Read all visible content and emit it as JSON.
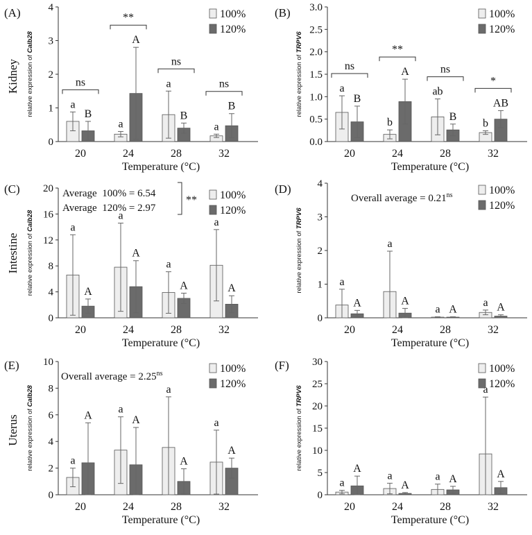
{
  "row_labels": [
    "Kidney",
    "Intestine",
    "Uterus"
  ],
  "legend": {
    "series": [
      "100%",
      "120%"
    ],
    "colors": [
      "#eeeeee",
      "#6b6b6b"
    ]
  },
  "chart_data": [
    {
      "panel": "(A)",
      "type": "bar",
      "gene": "Calb28",
      "ylabel_prefix": "relative expression of ",
      "xlabel": "Temperature (°C)",
      "categories": [
        "20",
        "24",
        "28",
        "32"
      ],
      "ylim": [
        0,
        4
      ],
      "yticks": [
        "0",
        "1",
        "2",
        "3",
        "4"
      ],
      "series": [
        {
          "name": "100%",
          "values": [
            0.6,
            0.22,
            0.8,
            0.17
          ],
          "errors": [
            0.28,
            0.08,
            0.7,
            0.05
          ],
          "letters": [
            "a",
            "a",
            "a",
            "a"
          ]
        },
        {
          "name": "120%",
          "values": [
            0.32,
            1.43,
            0.4,
            0.47
          ],
          "errors": [
            0.28,
            1.37,
            0.15,
            0.36
          ],
          "letters": [
            "B",
            "A",
            "B",
            "B"
          ]
        }
      ],
      "comparisons": [
        "ns",
        "**",
        "ns",
        "ns"
      ]
    },
    {
      "panel": "(B)",
      "type": "bar",
      "gene": "TRPV6",
      "ylabel_prefix": "relative expression of ",
      "xlabel": "Temperature (°C)",
      "categories": [
        "20",
        "24",
        "28",
        "32"
      ],
      "ylim": [
        0,
        3
      ],
      "yticks": [
        "0.0",
        "0.5",
        "1.0",
        "1.5",
        "2.0",
        "2.5",
        "3.0"
      ],
      "series": [
        {
          "name": "100%",
          "values": [
            0.65,
            0.16,
            0.55,
            0.2
          ],
          "errors": [
            0.37,
            0.1,
            0.4,
            0.04
          ],
          "letters": [
            "a",
            "b",
            "ab",
            "b"
          ]
        },
        {
          "name": "120%",
          "values": [
            0.44,
            0.89,
            0.26,
            0.5
          ],
          "errors": [
            0.35,
            0.5,
            0.13,
            0.19
          ],
          "letters": [
            "B",
            "A",
            "B",
            "AB"
          ]
        }
      ],
      "comparisons": [
        "ns",
        "**",
        "ns",
        "*"
      ]
    },
    {
      "panel": "(C)",
      "type": "bar",
      "gene": "Calb28",
      "ylabel_prefix": "relative expression of ",
      "xlabel": "Temperature (°C)",
      "categories": [
        "20",
        "24",
        "28",
        "32"
      ],
      "ylim": [
        0,
        20
      ],
      "yticks": [
        "0",
        "4",
        "8",
        "12",
        "16",
        "20"
      ],
      "series": [
        {
          "name": "100%",
          "values": [
            6.6,
            7.8,
            3.9,
            8.1
          ],
          "errors": [
            6.2,
            6.8,
            3.2,
            5.5
          ],
          "letters": [
            "a",
            "a",
            "a",
            "a"
          ]
        },
        {
          "name": "120%",
          "values": [
            1.8,
            4.8,
            3.0,
            2.1
          ],
          "errors": [
            1.1,
            4.0,
            0.8,
            1.3
          ],
          "letters": [
            "A",
            "A",
            "A",
            "A"
          ]
        }
      ],
      "annotation_lines": [
        "Average  100% = 6.54",
        "Average  120% = 2.97"
      ],
      "annotation_sig": "**"
    },
    {
      "panel": "(D)",
      "type": "bar",
      "gene": "TRPV6",
      "ylabel_prefix": "relative expression of ",
      "xlabel": "Temperature (°C)",
      "categories": [
        "20",
        "24",
        "28",
        "32"
      ],
      "ylim": [
        0,
        4
      ],
      "yticks": [
        "0",
        "1",
        "2",
        "3",
        "4"
      ],
      "series": [
        {
          "name": "100%",
          "values": [
            0.38,
            0.78,
            0.02,
            0.16
          ],
          "errors": [
            0.47,
            1.2,
            0.01,
            0.07
          ],
          "letters": [
            "a",
            "a",
            "a",
            "a"
          ]
        },
        {
          "name": "120%",
          "values": [
            0.12,
            0.14,
            0.02,
            0.05
          ],
          "errors": [
            0.1,
            0.14,
            0.01,
            0.04
          ],
          "letters": [
            "A",
            "A",
            "A",
            "A"
          ]
        }
      ],
      "annotation_text": "Overall average = 0.21",
      "annotation_sup": "ns"
    },
    {
      "panel": "(E)",
      "type": "bar",
      "gene": "Calb28",
      "ylabel_prefix": "relative expression of ",
      "xlabel": "Temperature (°C)",
      "categories": [
        "20",
        "24",
        "28",
        "32"
      ],
      "ylim": [
        0,
        10
      ],
      "yticks": [
        "0",
        "2",
        "4",
        "6",
        "8",
        "10"
      ],
      "series": [
        {
          "name": "100%",
          "values": [
            1.3,
            3.35,
            3.55,
            2.45
          ],
          "errors": [
            0.7,
            2.5,
            3.8,
            2.4
          ],
          "letters": [
            "a",
            "a",
            "a",
            "a"
          ]
        },
        {
          "name": "120%",
          "values": [
            2.4,
            2.25,
            1.0,
            2.0
          ],
          "errors": [
            3.0,
            2.8,
            0.95,
            0.75
          ],
          "letters": [
            "A",
            "A",
            "A",
            "A"
          ]
        }
      ],
      "annotation_text": "Overall average = 2.25",
      "annotation_sup": "ns"
    },
    {
      "panel": "(F)",
      "type": "bar",
      "gene": "TRPV6",
      "ylabel_prefix": "relative expression of ",
      "xlabel": "Temperature (°C)",
      "categories": [
        "20",
        "24",
        "28",
        "32"
      ],
      "ylim": [
        0,
        30
      ],
      "yticks": [
        "0",
        "5",
        "10",
        "15",
        "20",
        "25",
        "30"
      ],
      "series": [
        {
          "name": "100%",
          "values": [
            0.6,
            1.4,
            1.2,
            9.2
          ],
          "errors": [
            0.4,
            1.2,
            1.2,
            12.8
          ],
          "letters": [
            "a",
            "a",
            "a",
            "a"
          ]
        },
        {
          "name": "120%",
          "values": [
            2.0,
            0.3,
            1.1,
            1.6
          ],
          "errors": [
            2.2,
            0.2,
            0.8,
            1.4
          ],
          "letters": [
            "A",
            "A",
            "A",
            "A"
          ]
        }
      ]
    }
  ]
}
